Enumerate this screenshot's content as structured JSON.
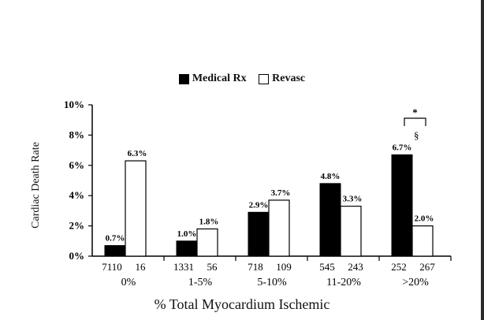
{
  "legend": {
    "medical_label": "Medical Rx",
    "revasc_label": "Revasc"
  },
  "colors": {
    "medical": "#000000",
    "revasc": "#ffffff",
    "axis": "#000000"
  },
  "chart_data": {
    "type": "bar",
    "ylabel": "Cardiac Death Rate",
    "xlabel": "% Total Myocardium Ischemic",
    "ylim": [
      0,
      10
    ],
    "yticks": [
      "0%",
      "2%",
      "4%",
      "6%",
      "8%",
      "10%"
    ],
    "categories": [
      "0%",
      "1-5%",
      "5-10%",
      "11-20%",
      ">20%"
    ],
    "series": [
      {
        "name": "Medical Rx",
        "values": [
          0.7,
          1.0,
          2.9,
          4.8,
          6.7
        ],
        "labels": [
          "0.7%",
          "1.0%",
          "2.9%",
          "4.8%",
          "6.7%"
        ],
        "counts": [
          "7110",
          "1331",
          "718",
          "545",
          "252"
        ]
      },
      {
        "name": "Revasc",
        "values": [
          6.3,
          1.8,
          3.7,
          3.3,
          2.0
        ],
        "labels": [
          "6.3%",
          "1.8%",
          "3.7%",
          "3.3%",
          "2.0%"
        ],
        "counts": [
          "16",
          "56",
          "109",
          "243",
          "267"
        ]
      }
    ],
    "annotations": {
      "significance": "*",
      "section_mark": "§"
    }
  }
}
